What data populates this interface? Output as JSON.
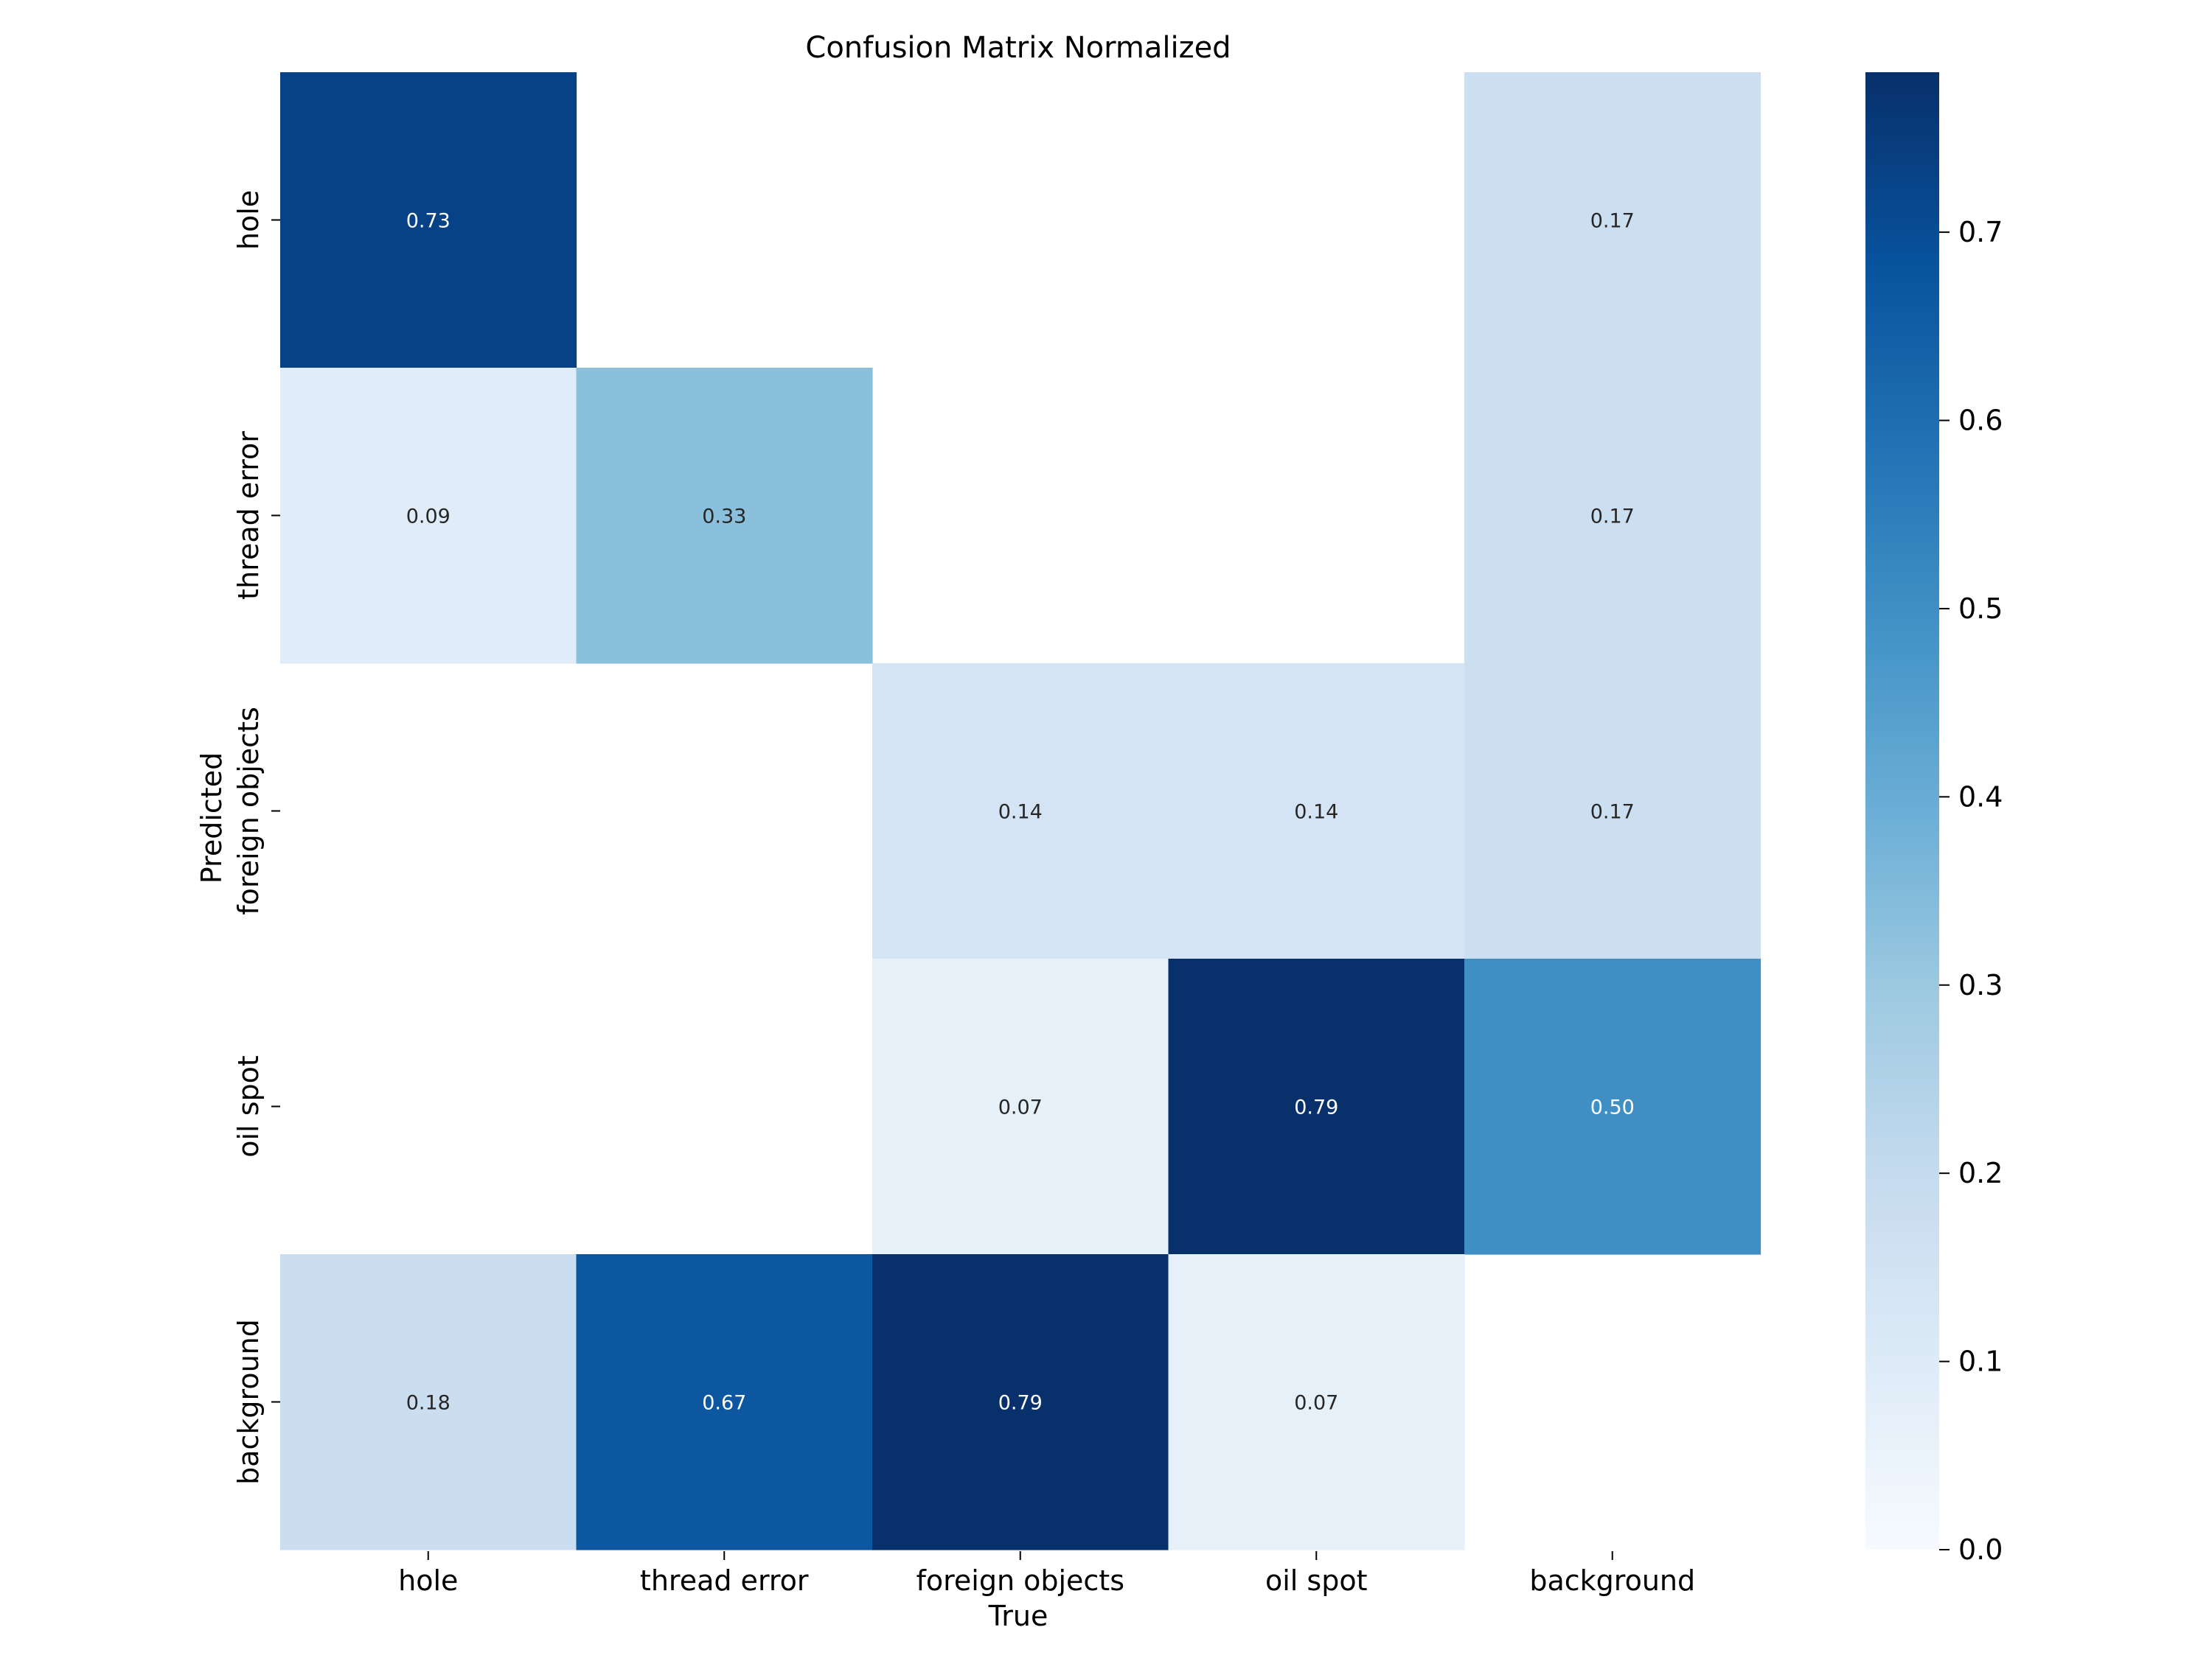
{
  "chart_data": {
    "type": "heatmap",
    "title": "Confusion Matrix Normalized",
    "xlabel": "True",
    "ylabel": "Predicted",
    "x_categories": [
      "hole",
      "thread error",
      "foreign objects",
      "oil spot",
      "background"
    ],
    "y_categories": [
      "hole",
      "thread error",
      "foreign objects",
      "oil spot",
      "background"
    ],
    "values": [
      [
        0.73,
        null,
        null,
        null,
        0.17
      ],
      [
        0.09,
        0.33,
        null,
        null,
        0.17
      ],
      [
        null,
        null,
        0.14,
        0.14,
        0.17
      ],
      [
        null,
        null,
        0.07,
        0.79,
        0.5
      ],
      [
        0.18,
        0.67,
        0.79,
        0.07,
        null
      ]
    ],
    "value_labels": [
      [
        "0.73",
        "",
        "",
        "",
        "0.17"
      ],
      [
        "0.09",
        "0.33",
        "",
        "",
        "0.17"
      ],
      [
        "",
        "",
        "0.14",
        "0.14",
        "0.17"
      ],
      [
        "",
        "",
        "0.07",
        "0.79",
        "0.50"
      ],
      [
        "0.18",
        "0.67",
        "0.79",
        "0.07",
        ""
      ]
    ],
    "colorbar": {
      "range": [
        0,
        0.785
      ],
      "ticks": [
        0.0,
        0.1,
        0.2,
        0.3,
        0.4,
        0.5,
        0.6,
        0.7
      ],
      "tick_labels": [
        "0.0",
        "0.1",
        "0.2",
        "0.3",
        "0.4",
        "0.5",
        "0.6",
        "0.7"
      ]
    },
    "colormap": "Blues",
    "colors": {
      "low": "#f7fbff",
      "high": "#08306b"
    }
  }
}
